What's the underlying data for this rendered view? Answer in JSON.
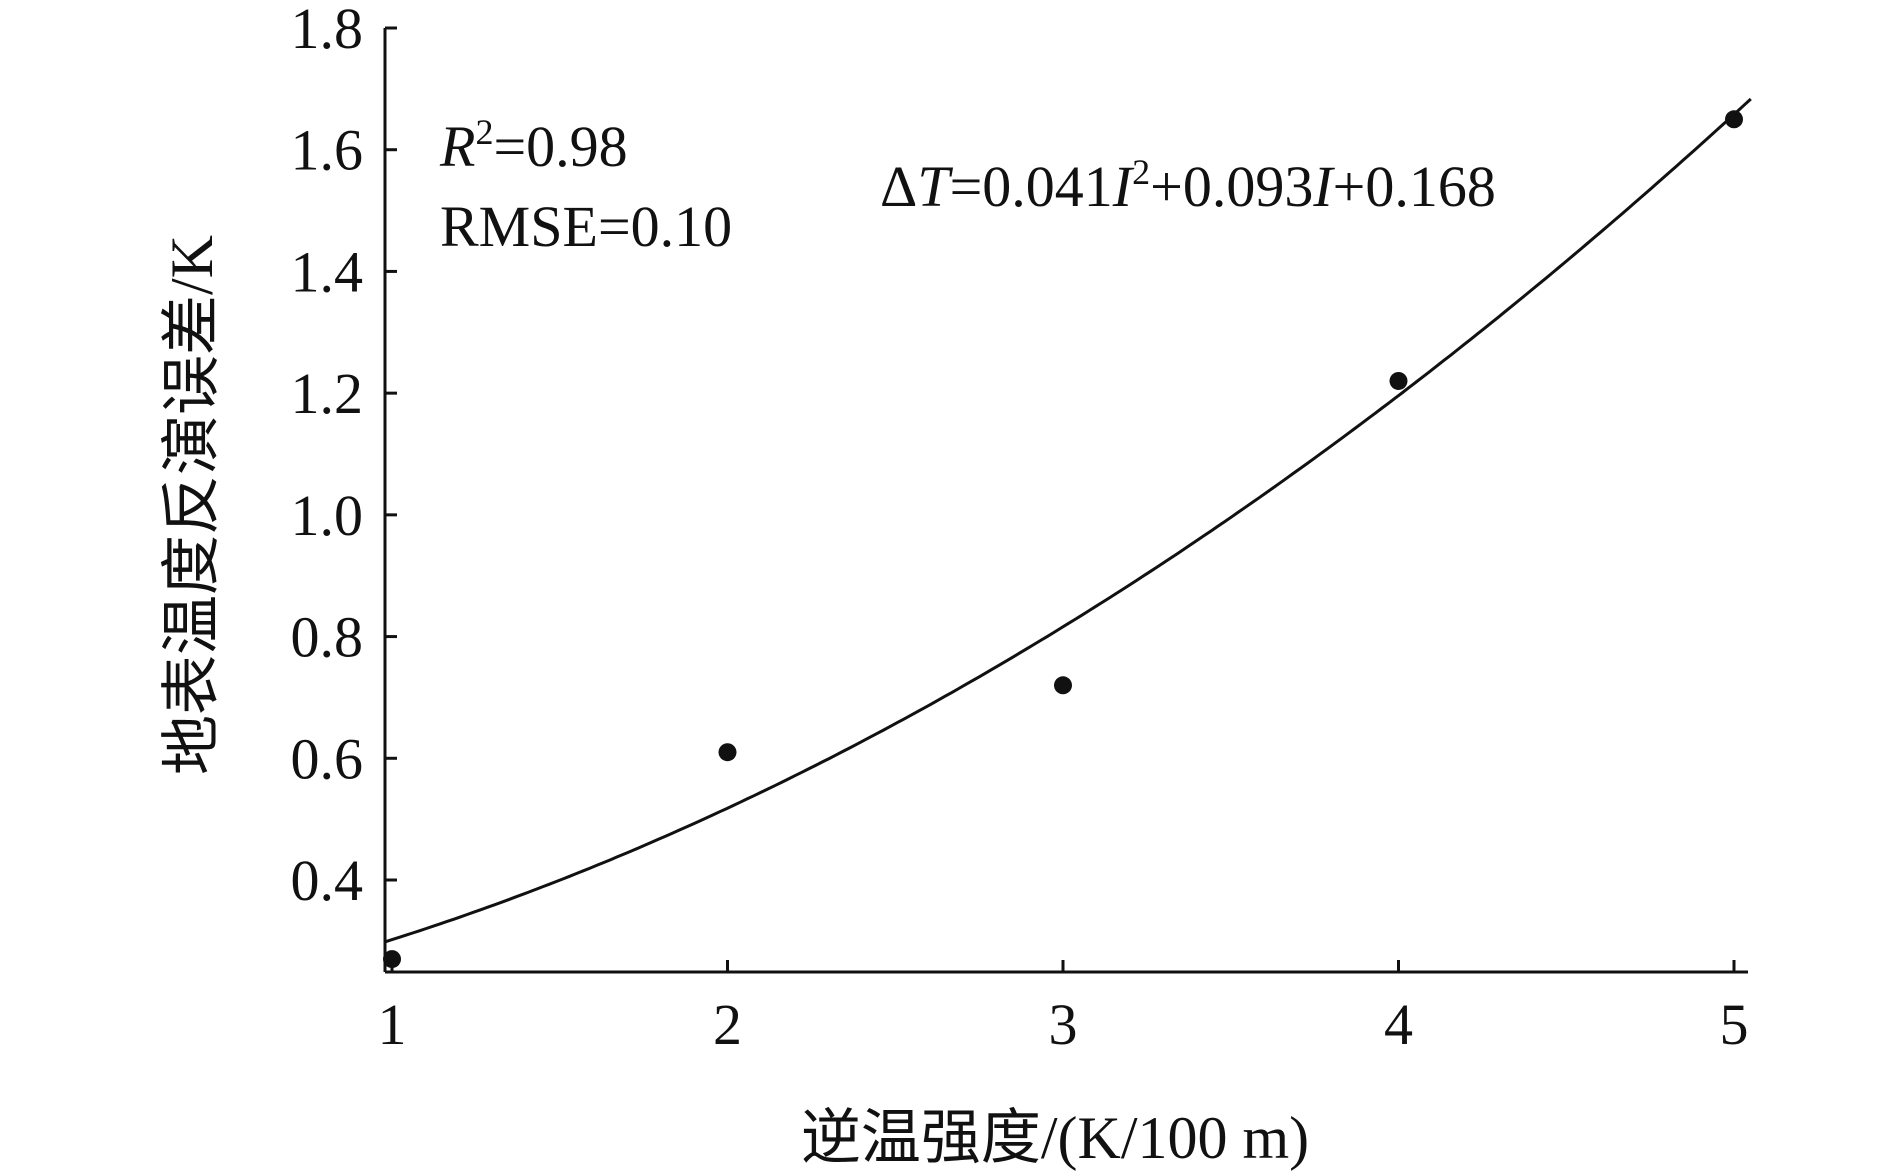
{
  "chart_data": {
    "type": "scatter",
    "xlabel": "逆温强度/(K/100 m)",
    "ylabel": "地表温度反演误差/K",
    "xlim": [
      1,
      5
    ],
    "ylim": [
      0.25,
      1.8
    ],
    "x_ticks": [
      "1",
      "2",
      "3",
      "4",
      "5"
    ],
    "y_ticks": [
      "0.4",
      "0.6",
      "0.8",
      "1.0",
      "1.2",
      "1.4",
      "1.6",
      "1.8"
    ],
    "points": [
      {
        "x": 1,
        "y": 0.27
      },
      {
        "x": 2,
        "y": 0.61
      },
      {
        "x": 3,
        "y": 0.72
      },
      {
        "x": 4,
        "y": 1.22
      },
      {
        "x": 5,
        "y": 1.65
      }
    ],
    "fit": {
      "a": 0.041,
      "b": 0.093,
      "c": 0.168
    },
    "equation": {
      "prefix": "Δ",
      "var_t": "T",
      "part1": "=0.041",
      "var_i1": "I",
      "sup": "2",
      "part2": "+0.093",
      "var_i2": "I",
      "part3": "+0.168"
    },
    "r2": {
      "var": "R",
      "sup": "2",
      "value": "=0.98"
    },
    "rmse": "RMSE=0.10",
    "grid": false,
    "legend": "none"
  }
}
